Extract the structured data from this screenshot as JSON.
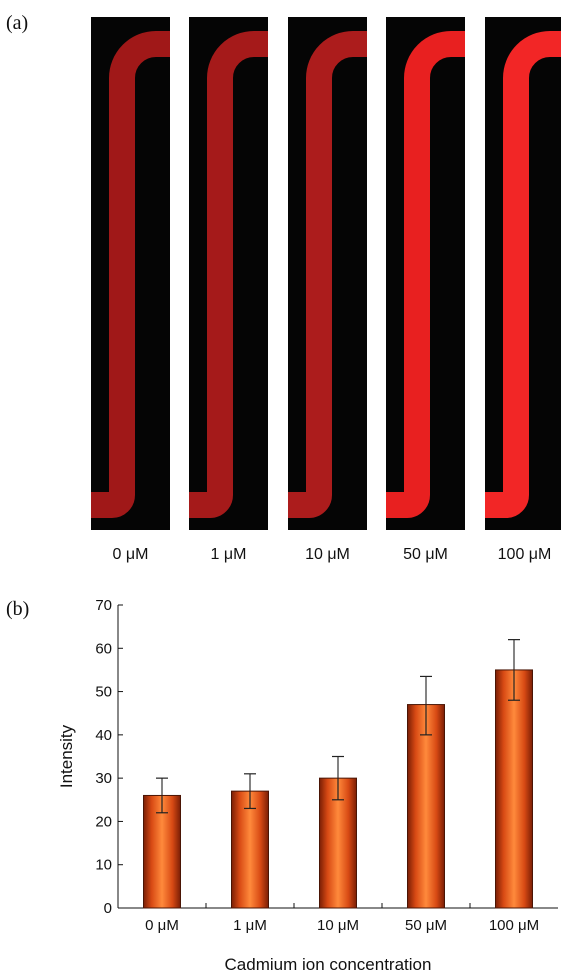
{
  "panel_a": {
    "label": "(a)",
    "images": [
      {
        "label": "0 μM",
        "color": "#a01818"
      },
      {
        "label": "1 μM",
        "color": "#a51a1a"
      },
      {
        "label": "10 μM",
        "color": "#ac1c1c"
      },
      {
        "label": "50 μM",
        "color": "#e82020"
      },
      {
        "label": "100 μM",
        "color": "#f22626"
      }
    ]
  },
  "panel_b": {
    "label": "(b)"
  },
  "chart_data": {
    "type": "bar",
    "categories": [
      "0 μM",
      "1 μM",
      "10 μM",
      "50 μM",
      "100 μM"
    ],
    "values": [
      26,
      27,
      30,
      47,
      55
    ],
    "error_low": [
      22,
      23,
      25,
      40,
      48
    ],
    "error_high": [
      30,
      31,
      35,
      53.5,
      62
    ],
    "title": "",
    "xlabel": "Cadmium  ion  concentration",
    "ylabel": "Intensity",
    "ylim": [
      0,
      70
    ],
    "yticks": [
      0,
      10,
      20,
      30,
      40,
      50,
      60,
      70
    ],
    "grid": false,
    "bar_color": "#e85520"
  }
}
